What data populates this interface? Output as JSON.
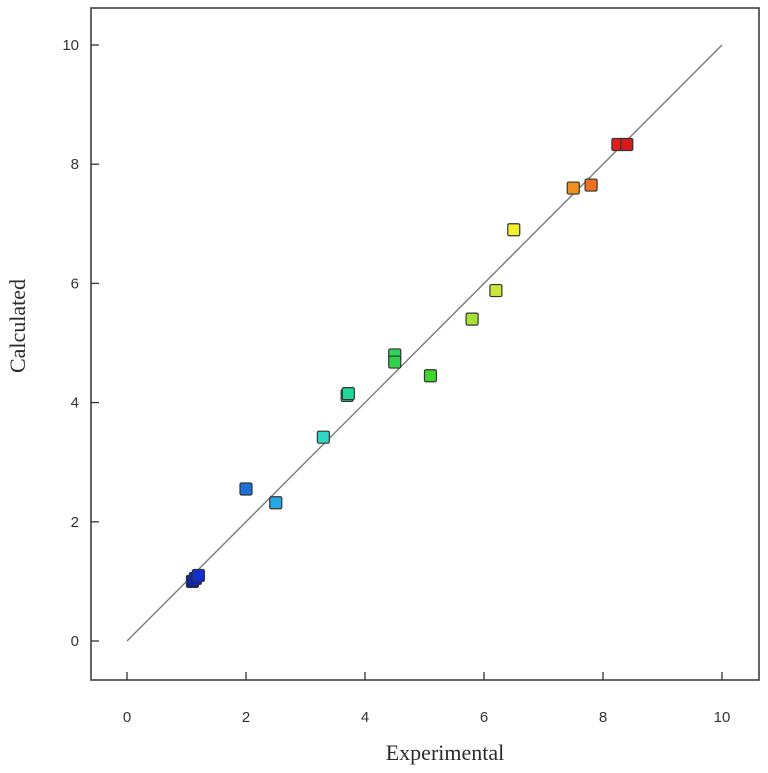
{
  "chart_data": {
    "type": "scatter",
    "xlabel": "Experimental",
    "ylabel": "Calculated",
    "xlim": [
      0,
      10
    ],
    "ylim": [
      0,
      10
    ],
    "xticks": [
      "0",
      "2",
      "4",
      "6",
      "8",
      "10"
    ],
    "yticks": [
      "0",
      "2",
      "4",
      "6",
      "8",
      "10"
    ],
    "grid": false,
    "reference_line": {
      "from": [
        0,
        0
      ],
      "to": [
        10,
        10
      ]
    },
    "points": [
      {
        "x": 1.1,
        "y": 1.0,
        "color": "#0a1fb8"
      },
      {
        "x": 1.15,
        "y": 1.05,
        "color": "#0a22c4"
      },
      {
        "x": 1.2,
        "y": 1.1,
        "color": "#1030d0"
      },
      {
        "x": 2.0,
        "y": 2.55,
        "color": "#1f6fd8"
      },
      {
        "x": 2.5,
        "y": 2.32,
        "color": "#27a8e6"
      },
      {
        "x": 3.3,
        "y": 3.42,
        "color": "#2ed8c4"
      },
      {
        "x": 3.7,
        "y": 4.12,
        "color": "#22d69a"
      },
      {
        "x": 3.72,
        "y": 4.15,
        "color": "#22d69a"
      },
      {
        "x": 4.5,
        "y": 4.8,
        "color": "#2bd65a"
      },
      {
        "x": 4.5,
        "y": 4.68,
        "color": "#2fd04a"
      },
      {
        "x": 5.1,
        "y": 4.45,
        "color": "#3ed62c"
      },
      {
        "x": 5.8,
        "y": 5.4,
        "color": "#a6e234"
      },
      {
        "x": 6.2,
        "y": 5.88,
        "color": "#c8e838"
      },
      {
        "x": 6.5,
        "y": 6.9,
        "color": "#f2f02a"
      },
      {
        "x": 7.5,
        "y": 7.6,
        "color": "#f0901e"
      },
      {
        "x": 7.8,
        "y": 7.65,
        "color": "#f07020"
      },
      {
        "x": 8.25,
        "y": 8.33,
        "color": "#e02018"
      },
      {
        "x": 8.4,
        "y": 8.33,
        "color": "#d81a16"
      }
    ]
  }
}
